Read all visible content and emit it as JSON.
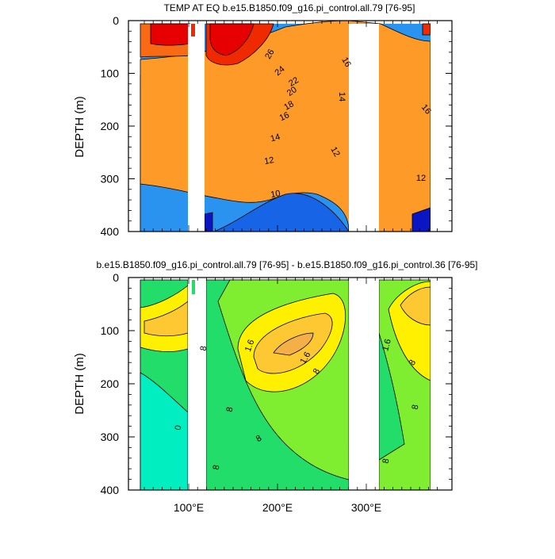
{
  "chart_data": [
    {
      "type": "heatmap",
      "title": "TEMP AT EQ b.e15.B1850.f09_g16.pi_control.all.79 [76-95]",
      "ylabel": "DEPTH (m)",
      "ylim": [
        0,
        400
      ],
      "y_ticks": [
        "0",
        "100",
        "200",
        "300",
        "400"
      ],
      "contour_labels": [
        "26",
        "24",
        "22",
        "20",
        "18",
        "16",
        "14",
        "12",
        "10",
        "16",
        "14",
        "16",
        "12",
        "12"
      ],
      "colors": [
        "#0a16c4",
        "#1764e6",
        "#2a93f0",
        "#37b8f4",
        "#46d8f8",
        "#00ccf0",
        "#22e2a6",
        "#33cc44",
        "#7de07a",
        "#c8ee2e",
        "#fff000",
        "#fec832",
        "#fe9a28",
        "#f86a14",
        "#f02a00",
        "#e60000"
      ]
    },
    {
      "type": "heatmap",
      "title": "b.e15.B1850.f09_g16.pi_control.all.79 [76-95] - b.e15.B1850.f09_g16.pi_control.36 [76-95]",
      "ylabel": "DEPTH (m)",
      "ylim": [
        0,
        400
      ],
      "y_ticks": [
        "0",
        "100",
        "200",
        "300",
        "400"
      ],
      "x_ticks": [
        "100°E",
        "200°E",
        "300°E"
      ],
      "contour_labels": [
        "0",
        "8",
        "1.6",
        "1.6",
        "8",
        "8",
        "8",
        "8",
        "1.6",
        "8",
        "8",
        "8"
      ],
      "colors": [
        "#00eec0",
        "#22dd6a",
        "#80ee30",
        "#fff000",
        "#fec832",
        "#f4b046",
        "#fe9a28"
      ]
    }
  ]
}
